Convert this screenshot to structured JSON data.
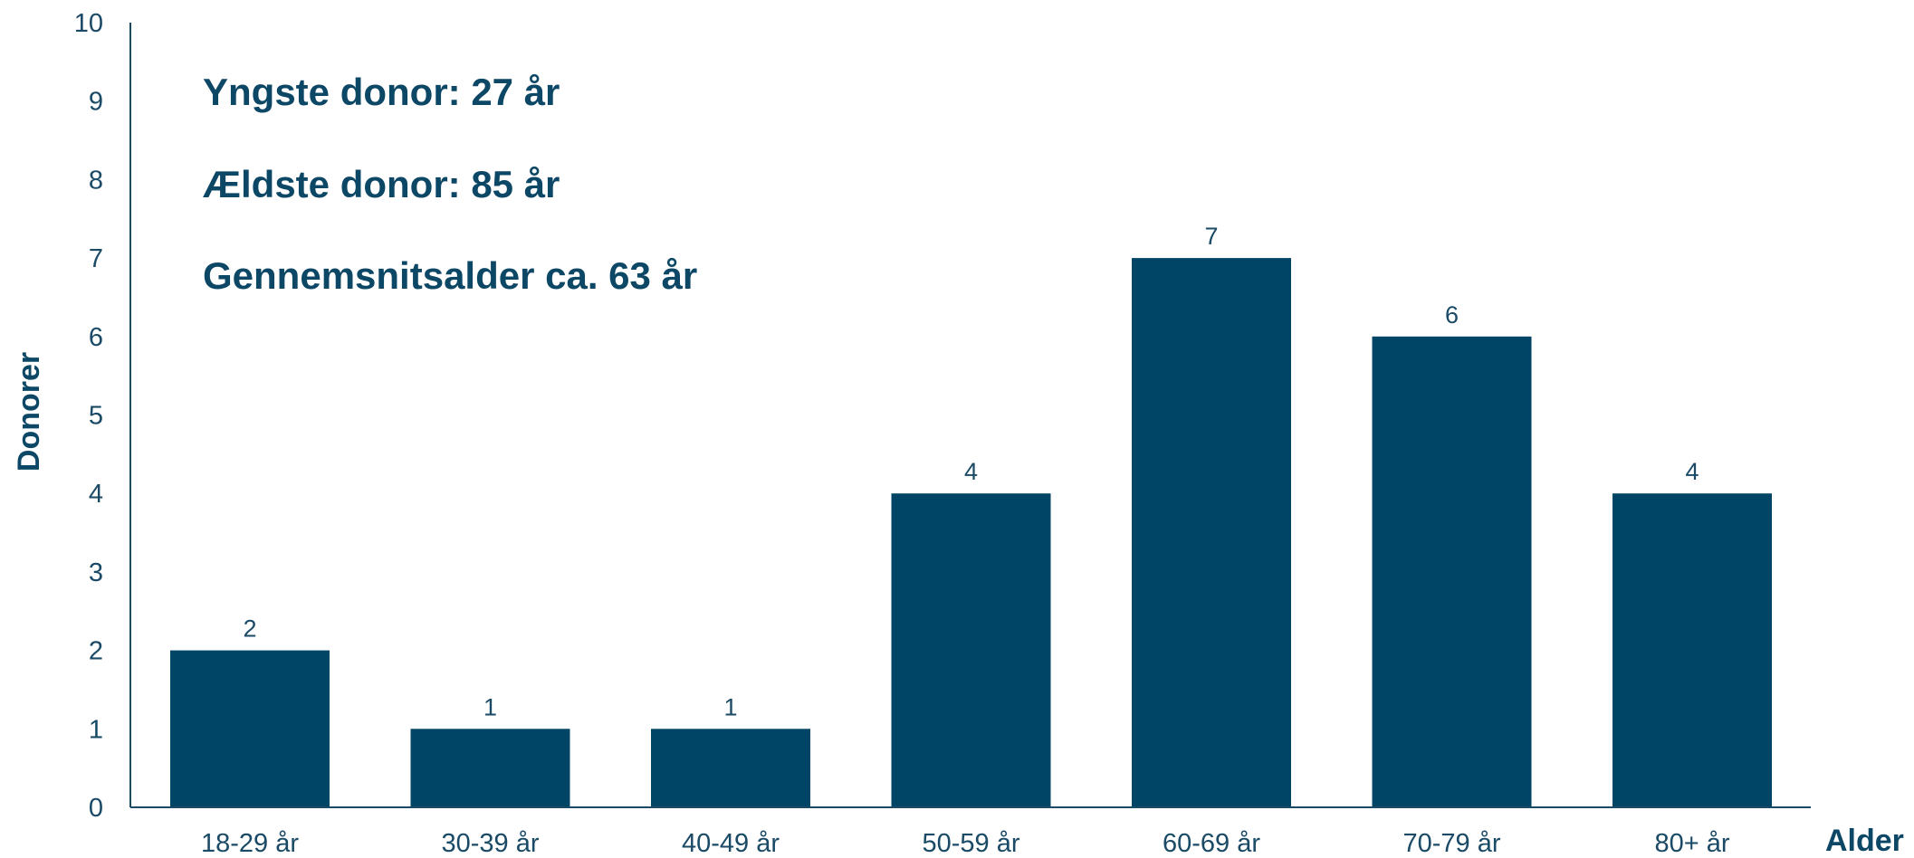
{
  "chart_data": {
    "type": "bar",
    "categories": [
      "18-29 år",
      "30-39 år",
      "40-49 år",
      "50-59 år",
      "60-69 år",
      "70-79 år",
      "80+ år"
    ],
    "values": [
      2,
      1,
      1,
      4,
      7,
      6,
      4
    ],
    "xlabel": "Alder",
    "ylabel": "Donorer",
    "ylim": [
      0,
      10
    ],
    "yticks": [
      0,
      1,
      2,
      3,
      4,
      5,
      6,
      7,
      8,
      9,
      10
    ],
    "grid": false,
    "legend": "none",
    "annotations": [
      "Yngste donor: 27 år",
      "Ældste donor: 85 år",
      "Gennemsnitsalder ca. 63 år"
    ],
    "colors": {
      "bar": "#004466",
      "text": "#1a4a66",
      "title": "#0d4766",
      "axis": "#1a4a66"
    }
  }
}
